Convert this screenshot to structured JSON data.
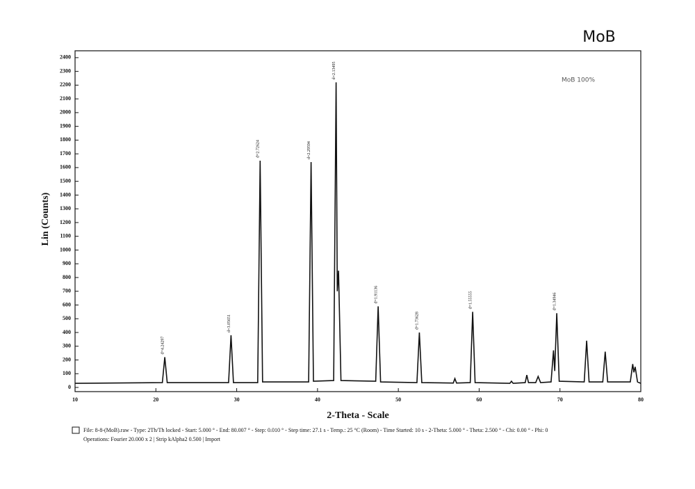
{
  "chart_data": {
    "type": "line",
    "title": "MoB",
    "legend_label": "MoB 100%",
    "xlabel": "2-Theta - Scale",
    "ylabel": "Lin (Counts)",
    "xlim": [
      10,
      80
    ],
    "ylim": [
      0,
      2450
    ],
    "xticks": [
      10,
      20,
      30,
      40,
      50,
      60,
      70,
      80
    ],
    "yticks": [
      0,
      100,
      200,
      300,
      400,
      500,
      600,
      700,
      800,
      900,
      1000,
      1100,
      1200,
      1300,
      1400,
      1500,
      1600,
      1700,
      1800,
      1900,
      2000,
      2100,
      2200,
      2300,
      2400
    ],
    "color": "#111111",
    "x": [
      10,
      20.8,
      21.1,
      21.4,
      29.0,
      29.3,
      29.6,
      32.6,
      32.9,
      33.2,
      38.9,
      39.2,
      39.5,
      42.0,
      42.3,
      42.45,
      42.6,
      42.9,
      47.2,
      47.5,
      47.8,
      52.3,
      52.6,
      52.9,
      56.8,
      57.0,
      57.2,
      58.9,
      59.2,
      59.5,
      63.8,
      64.0,
      64.2,
      65.7,
      65.9,
      66.1,
      67.0,
      67.3,
      67.6,
      68.9,
      69.2,
      69.35,
      69.6,
      69.9,
      73.0,
      73.3,
      73.6,
      75.3,
      75.6,
      75.9,
      78.7,
      79.0,
      79.15,
      79.3,
      79.6,
      80
    ],
    "values": [
      30,
      35,
      220,
      35,
      35,
      380,
      35,
      35,
      1650,
      40,
      40,
      1640,
      45,
      50,
      2220,
      700,
      850,
      50,
      45,
      590,
      40,
      35,
      400,
      35,
      32,
      65,
      32,
      35,
      550,
      35,
      30,
      45,
      30,
      35,
      90,
      35,
      35,
      80,
      35,
      40,
      270,
      120,
      540,
      45,
      40,
      340,
      40,
      40,
      260,
      40,
      40,
      170,
      110,
      150,
      40,
      30
    ],
    "annotations": [
      {
        "text": "d=4.24297",
        "x": 21.1,
        "y": 220
      },
      {
        "text": "d=3.05651",
        "x": 29.3,
        "y": 380
      },
      {
        "text": "d=2.72624",
        "x": 32.9,
        "y": 1650
      },
      {
        "text": "d=2.29594",
        "x": 39.2,
        "y": 1640
      },
      {
        "text": "d=2.13495",
        "x": 42.3,
        "y": 2220
      },
      {
        "text": "d=1.91136",
        "x": 47.5,
        "y": 590
      },
      {
        "text": "d=1.73628",
        "x": 52.6,
        "y": 400
      },
      {
        "text": "d=1.55555",
        "x": 59.2,
        "y": 550
      },
      {
        "text": "d=1.34946",
        "x": 69.6,
        "y": 540
      }
    ],
    "footer": [
      "File: 8-8-(MoB).raw - Type: 2Th/Th locked - Start: 5.000 ° - End: 80.007 ° - Step: 0.010 ° - Step time: 27.1 s - Temp.: 25 °C (Room) - Time Started: 10 s - 2-Theta: 5.000 ° - Theta: 2.500 ° - Chi: 0.00 ° - Phi: 0",
      "Operations: Fourier 20.000 x 2 | Strip kAlpha2 0.500 | Import"
    ]
  }
}
